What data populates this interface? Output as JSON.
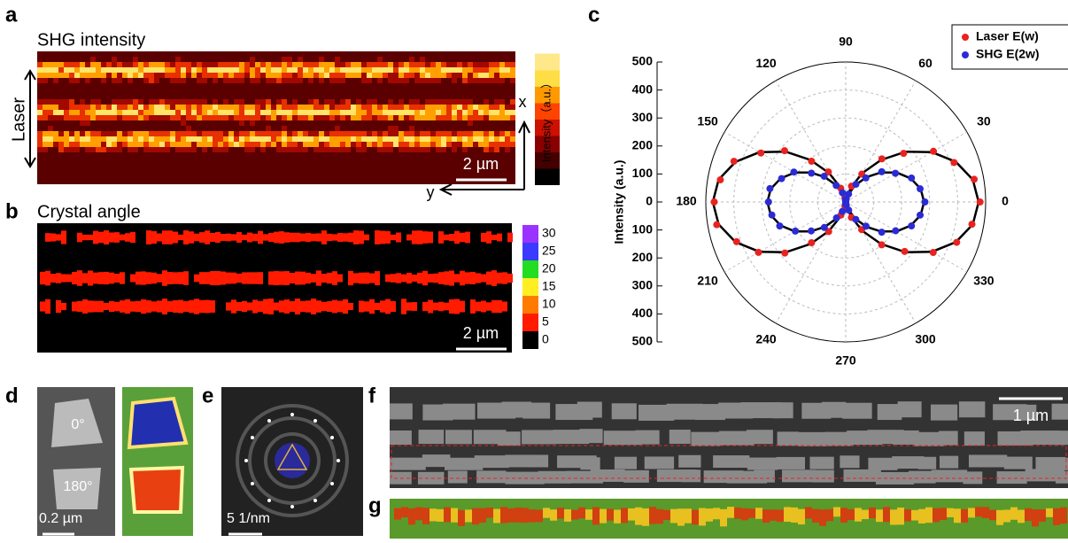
{
  "panels": {
    "a": {
      "letter": "a",
      "title": "SHG intensity",
      "laser": "Laser",
      "colorbar_label": "Intensity（a.u.）",
      "axis_x": "x",
      "axis_y": "y",
      "scalebar": "2 µm"
    },
    "b": {
      "letter": "b",
      "title": "Crystal angle",
      "scalebar": "2 µm",
      "colorbar": {
        "ticks": [
          30,
          25,
          20,
          15,
          10,
          5,
          0
        ],
        "colors": [
          "#9a33ff",
          "#3a3aff",
          "#22dd22",
          "#ffee22",
          "#ff7a00",
          "#ff1a00",
          "#000000"
        ]
      }
    },
    "d": {
      "letter": "d",
      "labels": [
        "0°",
        "180°"
      ],
      "scalebar": "0.2 µm"
    },
    "e": {
      "letter": "e",
      "scalebar": "5 1/nm"
    },
    "f": {
      "letter": "f",
      "scalebar": "1 µm"
    },
    "g": {
      "letter": "g"
    }
  },
  "chart_data": {
    "type": "polar",
    "letter": "c",
    "ylabel": "Intensity (a.u.)",
    "x": [
      0,
      10,
      20,
      30,
      40,
      50,
      60,
      70,
      80,
      90,
      100,
      110,
      120,
      130,
      140,
      150,
      160,
      170,
      180,
      190,
      200,
      210,
      220,
      230,
      240,
      250,
      260,
      270,
      280,
      290,
      300,
      310,
      320,
      330,
      340,
      350
    ],
    "series": [
      {
        "name": "Laser E(w)",
        "color": "#e8231f",
        "values": [
          480,
          466,
          412,
          362,
          270,
          201,
          115,
          60,
          12,
          3,
          17,
          52,
          124,
          190,
          285,
          350,
          425,
          455,
          470,
          468,
          415,
          360,
          284,
          190,
          122,
          50,
          16,
          2,
          12,
          59,
          114,
          200,
          275,
          361,
          422,
          458
        ]
      },
      {
        "name": "SHG  E(2w)",
        "color": "#2b2bd6",
        "values": [
          283,
          270,
          250,
          205,
          168,
          112,
          73,
          30,
          10,
          2,
          9,
          35,
          68,
          120,
          160,
          214,
          244,
          275,
          276,
          268,
          251,
          208,
          161,
          119,
          66,
          36,
          7,
          1,
          10,
          31,
          72,
          113,
          168,
          206,
          250,
          270
        ]
      }
    ],
    "fit_curves": [
      {
        "color": "#000000",
        "values": [
          475,
          461,
          419,
          356,
          279,
          196,
          119,
          56,
          14,
          0,
          14,
          56,
          119,
          196,
          279,
          356,
          419,
          461,
          475,
          461,
          419,
          356,
          279,
          196,
          119,
          56,
          14,
          0,
          14,
          56,
          119,
          196,
          279,
          356,
          419,
          461
        ]
      },
      {
        "color": "#000000",
        "values": [
          280,
          272,
          247,
          210,
          164,
          116,
          70,
          33,
          8,
          0,
          8,
          33,
          70,
          116,
          164,
          210,
          247,
          272,
          280,
          272,
          247,
          210,
          164,
          116,
          70,
          33,
          8,
          0,
          8,
          33,
          70,
          116,
          164,
          210,
          247,
          272
        ]
      }
    ],
    "ylim": [
      0,
      500
    ],
    "yticks": [
      0,
      100,
      200,
      300,
      400,
      500
    ],
    "xticks": [
      0,
      30,
      60,
      90,
      120,
      150,
      180,
      210,
      240,
      270,
      300,
      330
    ],
    "grid": true,
    "legend": "top-right"
  }
}
